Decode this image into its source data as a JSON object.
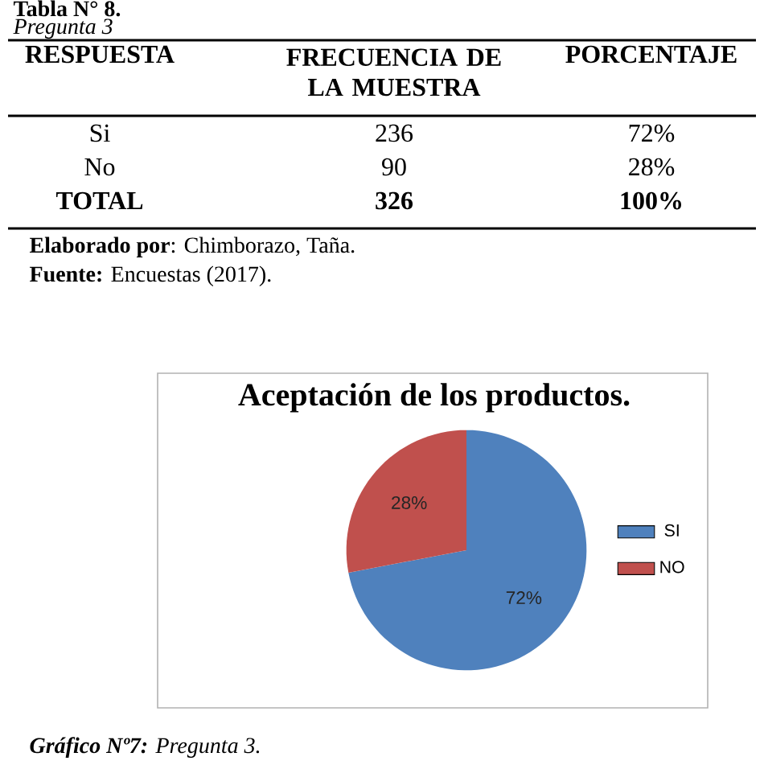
{
  "chart_data": {
    "type": "pie",
    "title": "Aceptación de los productos.",
    "categories": [
      "SI",
      "NO"
    ],
    "values": [
      72,
      28
    ],
    "colors": [
      "#4f81bd",
      "#c0504d"
    ],
    "value_labels": [
      "72%",
      "28%"
    ],
    "legend": "right",
    "annotations": [
      "Tabla N° 8.",
      "Pregunta 3",
      "RESPUESTA",
      "FRECUENCIA DE LA MUESTRA",
      "PORCENTAJE",
      "Si",
      "236",
      "72%",
      "No",
      "90",
      "28%",
      "TOTAL",
      "326",
      "100%",
      "**Elaborado por**: Chimborazo, Taña.",
      "**Fuente:** Encuestas (2017).",
      "**Gráfico Nº7:** Pregunta 3."
    ]
  }
}
